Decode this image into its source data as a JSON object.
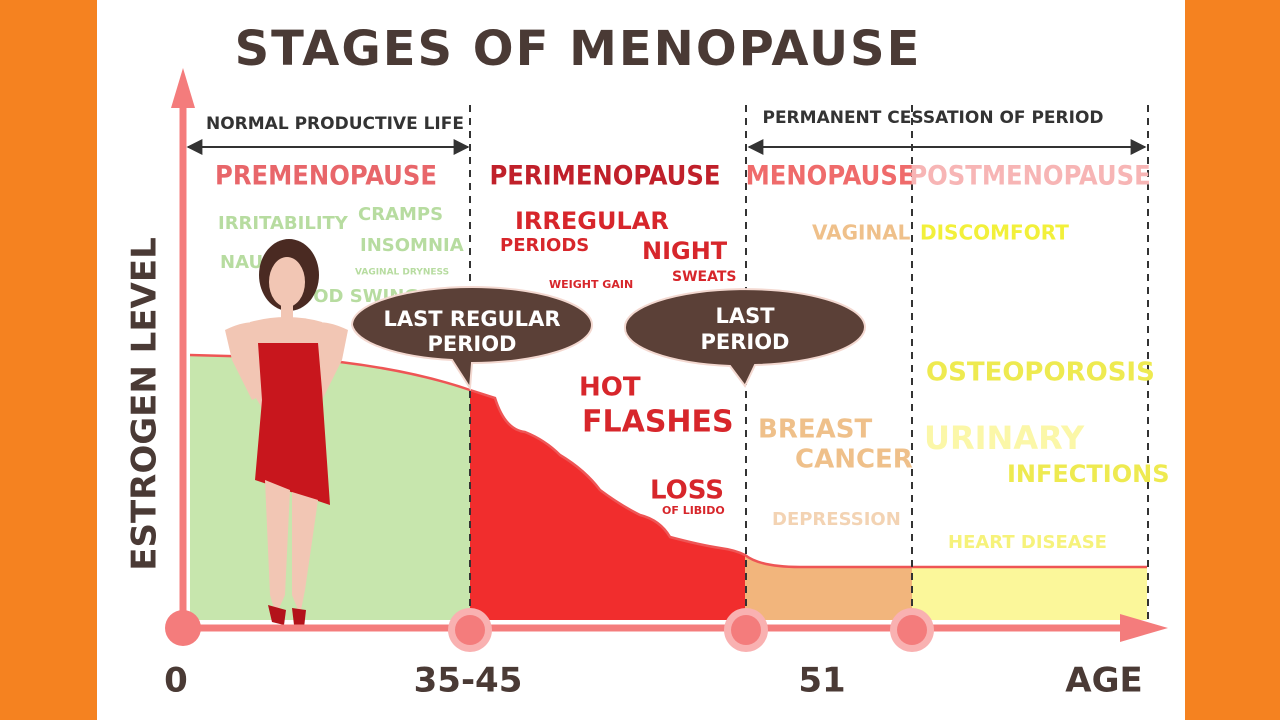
{
  "title": "STAGES OF MENOPAUSE",
  "y_axis_label": "ESTROGEN LEVEL",
  "x_axis": {
    "label": "AGE",
    "markers": [
      "0",
      "35-45",
      "51"
    ]
  },
  "spans": [
    "NORMAL PRODUCTIVE LIFE",
    "PERMANENT CESSATION OF PERIOD"
  ],
  "stages": [
    {
      "name": "PREMENOPAUSE",
      "symptoms": [
        "IRRITABILITY",
        "CRAMPS",
        "INSOMNIA",
        "NAUSEA",
        "VAGINAL DRYNESS",
        "MOOD SWINGS"
      ]
    },
    {
      "name": "PERIMENOPAUSE",
      "symptoms": [
        "IRREGULAR",
        "PERIODS",
        "NIGHT",
        "SWEATS",
        "WEIGHT GAIN",
        "HOT",
        "FLASHES",
        "LOSS",
        "OF LIBIDO"
      ]
    },
    {
      "name": "MENOPAUSE",
      "symptoms": [
        "VAGINAL",
        "BREAST",
        "CANCER",
        "DEPRESSION"
      ]
    },
    {
      "name": "POSTMENOPAUSE",
      "symptoms": [
        "DISCOMFORT",
        "OSTEOPOROSIS",
        "URINARY",
        "INFECTIONS",
        "HEART DISEASE"
      ]
    }
  ],
  "callouts": [
    {
      "lines": [
        "LAST REGULAR",
        "PERIOD"
      ]
    },
    {
      "lines": [
        "LAST",
        "PERIOD"
      ]
    }
  ]
}
